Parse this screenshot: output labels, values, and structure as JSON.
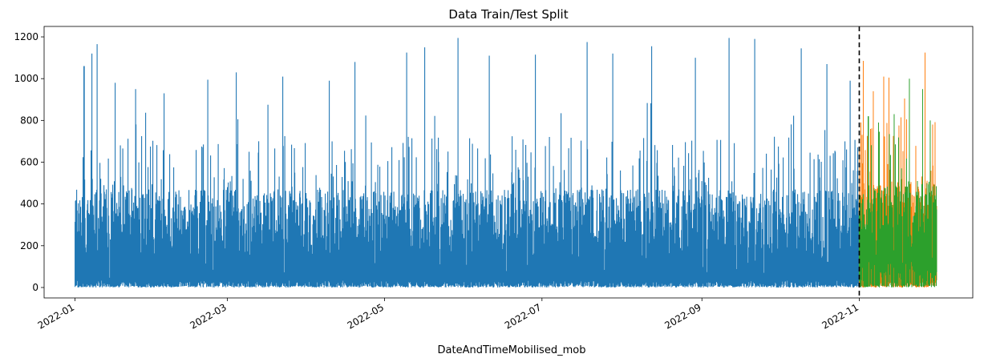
{
  "chart_data": {
    "type": "line",
    "title": "Data Train/Test Split",
    "xlabel": "DateAndTimeMobilised_mob",
    "ylabel": "",
    "x_type": "date",
    "xlim": [
      "2021-12-20",
      "2022-12-15"
    ],
    "ylim": [
      -50,
      1250
    ],
    "yticks": [
      0,
      200,
      400,
      600,
      800,
      1000,
      1200
    ],
    "xticks": [
      "2022-01",
      "2022-03",
      "2022-05",
      "2022-07",
      "2022-09",
      "2022-11"
    ],
    "grid": false,
    "legend": "none",
    "split_date": "2022-11-01",
    "series": [
      {
        "color": "#1f77b4",
        "date_range": [
          "2022-01-01",
          "2022-10-31"
        ],
        "band_low": 25,
        "band_high": 470,
        "y_min": 0,
        "peaks": [
          {
            "x": "2022-01-04",
            "y": 1060
          },
          {
            "x": "2022-01-07",
            "y": 1120
          },
          {
            "x": "2022-01-09",
            "y": 1165
          },
          {
            "x": "2022-01-16",
            "y": 980
          },
          {
            "x": "2022-01-24",
            "y": 950
          },
          {
            "x": "2022-02-04",
            "y": 930
          },
          {
            "x": "2022-02-21",
            "y": 995
          },
          {
            "x": "2022-03-04",
            "y": 1030
          },
          {
            "x": "2022-03-22",
            "y": 1010
          },
          {
            "x": "2022-04-09",
            "y": 990
          },
          {
            "x": "2022-04-19",
            "y": 1080
          },
          {
            "x": "2022-05-09",
            "y": 1125
          },
          {
            "x": "2022-05-16",
            "y": 1150
          },
          {
            "x": "2022-05-29",
            "y": 1195
          },
          {
            "x": "2022-06-10",
            "y": 1110
          },
          {
            "x": "2022-06-28",
            "y": 1115
          },
          {
            "x": "2022-07-18",
            "y": 1175
          },
          {
            "x": "2022-07-28",
            "y": 1120
          },
          {
            "x": "2022-08-12",
            "y": 1155
          },
          {
            "x": "2022-08-29",
            "y": 1100
          },
          {
            "x": "2022-09-11",
            "y": 1195
          },
          {
            "x": "2022-09-21",
            "y": 1190
          },
          {
            "x": "2022-10-09",
            "y": 1145
          },
          {
            "x": "2022-10-19",
            "y": 1070
          },
          {
            "x": "2022-10-28",
            "y": 990
          }
        ]
      },
      {
        "color": "#ff7f0e",
        "date_range": [
          "2022-11-01",
          "2022-11-30"
        ],
        "band_low": 30,
        "band_high": 520,
        "y_min": 0,
        "peaks": [
          {
            "x": "2022-11-02",
            "y": 1085
          },
          {
            "x": "2022-11-06",
            "y": 940
          },
          {
            "x": "2022-11-10",
            "y": 1010
          },
          {
            "x": "2022-11-12",
            "y": 1005
          },
          {
            "x": "2022-11-18",
            "y": 905
          },
          {
            "x": "2022-11-26",
            "y": 1125
          },
          {
            "x": "2022-11-29",
            "y": 780
          }
        ]
      },
      {
        "color": "#2ca02c",
        "date_range": [
          "2022-11-01",
          "2022-11-30"
        ],
        "band_low": 90,
        "band_high": 500,
        "y_min": 0,
        "peaks": [
          {
            "x": "2022-11-04",
            "y": 820
          },
          {
            "x": "2022-11-08",
            "y": 790
          },
          {
            "x": "2022-11-14",
            "y": 830
          },
          {
            "x": "2022-11-20",
            "y": 1000
          },
          {
            "x": "2022-11-25",
            "y": 950
          },
          {
            "x": "2022-11-28",
            "y": 800
          }
        ]
      }
    ]
  }
}
